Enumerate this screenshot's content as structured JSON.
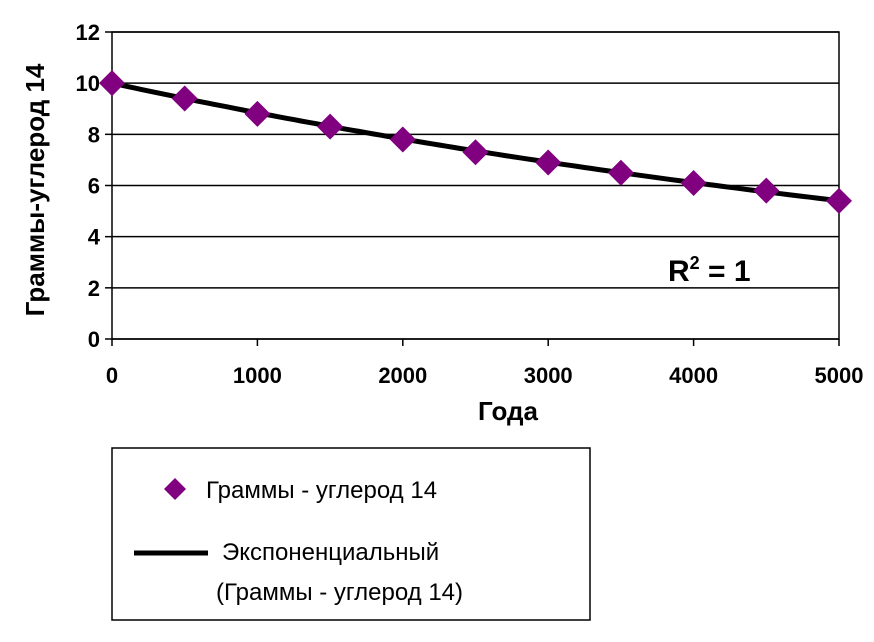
{
  "chart_data": {
    "type": "scatter",
    "xlabel": "Года",
    "ylabel": "Граммы-углерод 14",
    "xlim": [
      0,
      5000
    ],
    "ylim": [
      0,
      12
    ],
    "x_ticks": [
      "0",
      "1000",
      "2000",
      "3000",
      "4000",
      "5000"
    ],
    "y_ticks": [
      "0",
      "2",
      "4",
      "6",
      "8",
      "10",
      "12"
    ],
    "grid": "horizontal",
    "series": [
      {
        "name": "Граммы - углерод 14",
        "marker": "diamond",
        "color": "#800080",
        "x": [
          0,
          500,
          1000,
          1500,
          2000,
          2500,
          3000,
          3500,
          4000,
          4500,
          5000
        ],
        "y": [
          10,
          9.4,
          8.8,
          8.3,
          7.8,
          7.3,
          6.9,
          6.5,
          6.1,
          5.8,
          5.4
        ]
      }
    ],
    "trendline": {
      "name_line1": "Экспоненциальный",
      "name_line2": "(Граммы - углерод 14)",
      "type": "exponential",
      "color": "#000000",
      "a": 10,
      "b": -0.000123
    },
    "annotation": {
      "text": "R",
      "sup": "2",
      "rest": " = 1"
    },
    "legend": {
      "placement": "bottom-left"
    }
  }
}
